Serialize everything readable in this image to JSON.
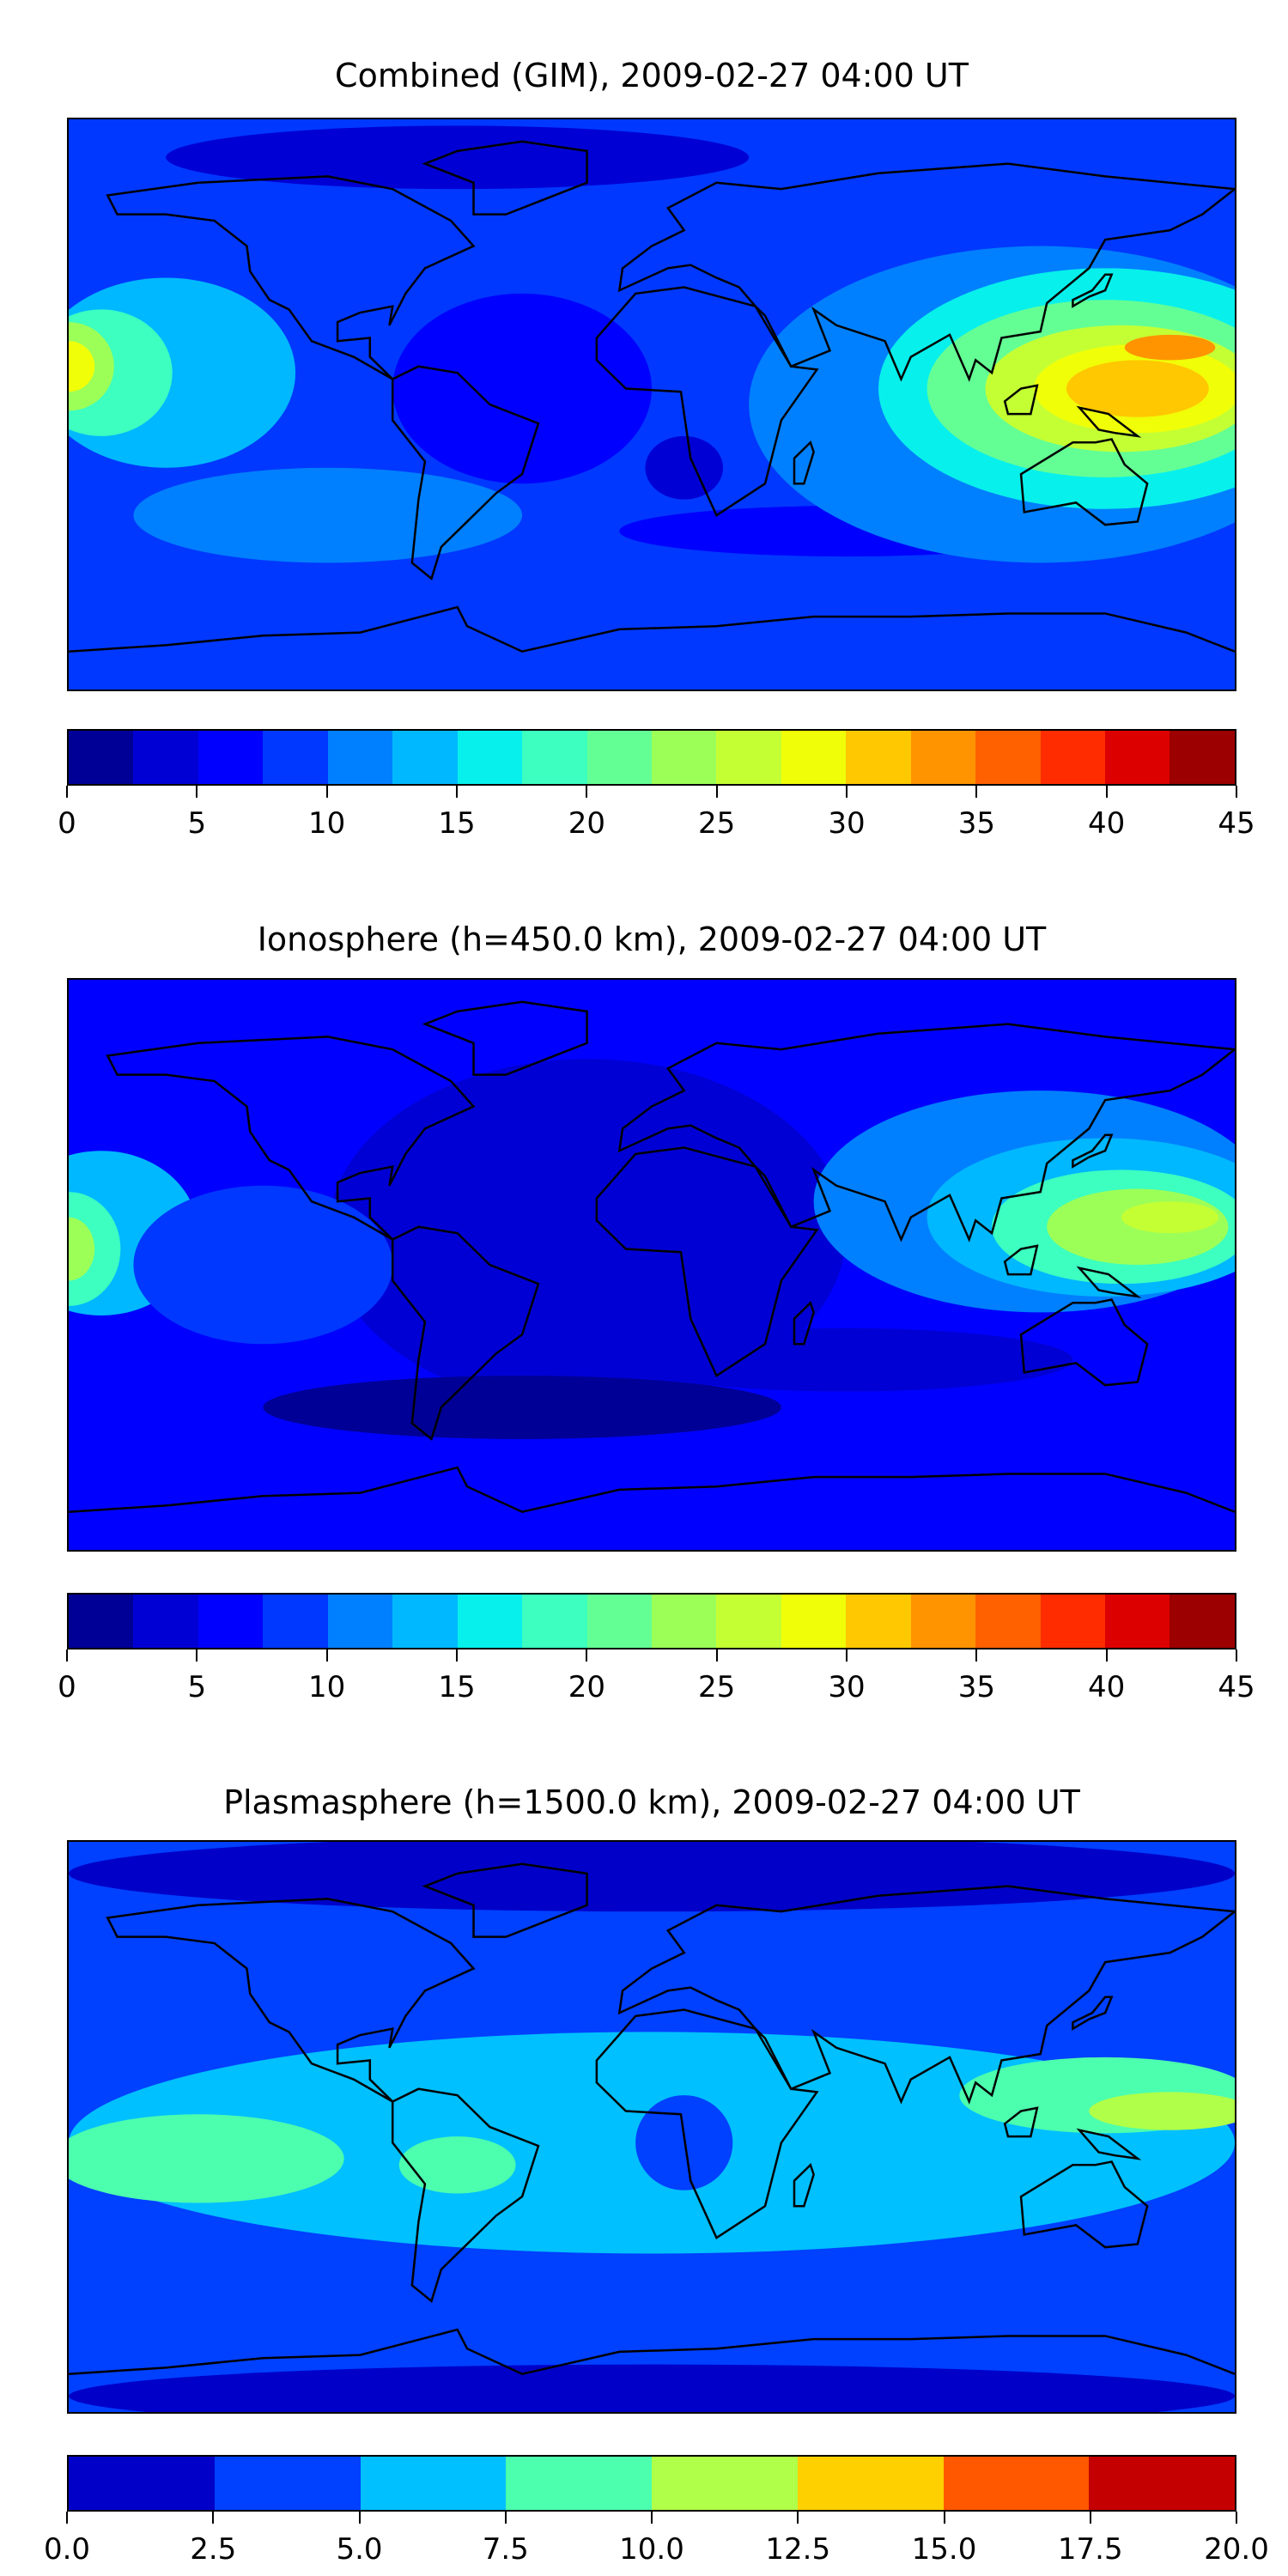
{
  "chart_data": [
    {
      "type": "heatmap",
      "title": "Combined (GIM), 2009-02-27 04:00 UT",
      "colorbar": {
        "levels": [
          0,
          2.5,
          5,
          7.5,
          10,
          12.5,
          15,
          17.5,
          20,
          22.5,
          25,
          27.5,
          30,
          32.5,
          35,
          37.5,
          40,
          42.5,
          45
        ],
        "colors": [
          "#000096",
          "#0000d4",
          "#0000ff",
          "#0038ff",
          "#0080ff",
          "#00b8ff",
          "#08f0ec",
          "#3cffc0",
          "#64ff94",
          "#9cff58",
          "#c4ff34",
          "#f0ff08",
          "#ffc800",
          "#ff9400",
          "#ff6000",
          "#ff2c00",
          "#dc0000",
          "#9c0000"
        ],
        "ticks": [
          "0",
          "5",
          "10",
          "15",
          "20",
          "25",
          "30",
          "35",
          "40",
          "45"
        ],
        "range": [
          0,
          45
        ]
      },
      "features": {
        "max_region": "Western Pacific / Indonesia",
        "max_level": "32.5-35",
        "secondary_max": "Eastern Pacific at 180° lon, 25-30"
      }
    },
    {
      "type": "heatmap",
      "title": "Ionosphere  (h=450.0 km), 2009-02-27 04:00 UT",
      "colorbar": {
        "levels": [
          0,
          2.5,
          5,
          7.5,
          10,
          12.5,
          15,
          17.5,
          20,
          22.5,
          25,
          27.5,
          30,
          32.5,
          35,
          37.5,
          40,
          42.5,
          45
        ],
        "colors": [
          "#000096",
          "#0000d4",
          "#0000ff",
          "#0038ff",
          "#0080ff",
          "#00b8ff",
          "#08f0ec",
          "#3cffc0",
          "#64ff94",
          "#9cff58",
          "#c4ff34",
          "#f0ff08",
          "#ffc800",
          "#ff9400",
          "#ff6000",
          "#ff2c00",
          "#dc0000",
          "#9c0000"
        ],
        "ticks": [
          "0",
          "5",
          "10",
          "15",
          "20",
          "25",
          "30",
          "35",
          "40",
          "45"
        ],
        "range": [
          0,
          45
        ]
      },
      "features": {
        "max_region": "Western Pacific",
        "max_level": "25-27.5"
      }
    },
    {
      "type": "heatmap",
      "title": "Plasmasphere (h=1500.0 km), 2009-02-27 04:00 UT",
      "colorbar": {
        "levels": [
          0,
          2.5,
          5,
          7.5,
          10,
          12.5,
          15,
          17.5,
          20
        ],
        "colors": [
          "#0000c8",
          "#0040ff",
          "#00c0ff",
          "#4cffae",
          "#b0ff48",
          "#ffd000",
          "#ff5800",
          "#c40000"
        ],
        "ticks": [
          "0.0",
          "2.5",
          "5.0",
          "7.5",
          "10.0",
          "12.5",
          "15.0",
          "17.5",
          "20.0"
        ],
        "range": [
          0,
          20
        ]
      },
      "features": {
        "max_region": "Western Pacific",
        "max_level": "10-12.5"
      }
    }
  ]
}
